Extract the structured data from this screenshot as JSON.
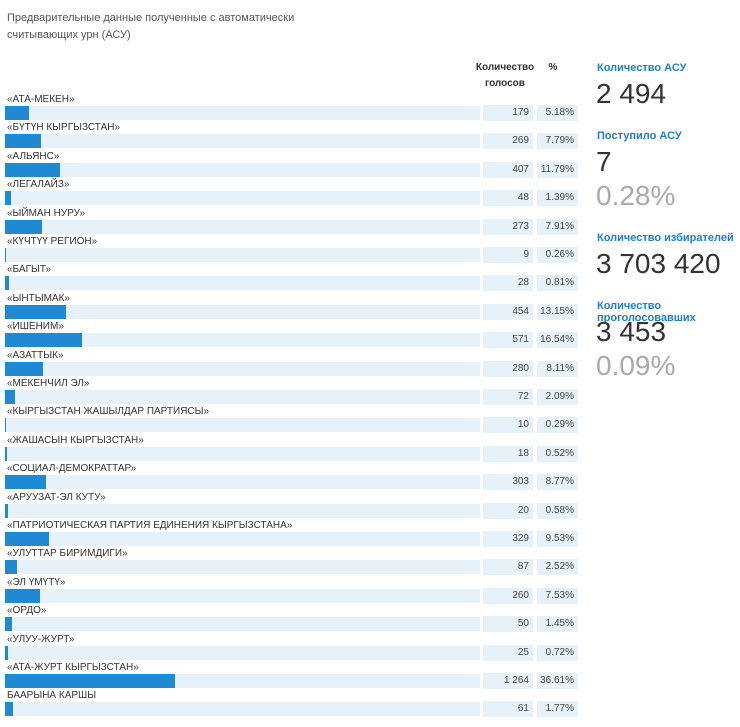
{
  "header": {
    "title_lines": [
      "Предварительные данные полученные с автоматически",
      "считывающих урн (АСУ)"
    ],
    "col_votes_lines": [
      "Количество",
      "голосов"
    ],
    "col_percent": "%"
  },
  "rows": [
    {
      "name": "«АТА-МЕКЕН»",
      "votes": 179,
      "percent": "5.18%"
    },
    {
      "name": "«БҮТҮН КЫРГЫЗСТАН»",
      "votes": 269,
      "percent": "7.79%"
    },
    {
      "name": "«АЛЬЯНС»",
      "votes": 407,
      "percent": "11.79%"
    },
    {
      "name": "«ЛЕГАЛАЙЗ»",
      "votes": 48,
      "percent": "1.39%"
    },
    {
      "name": "«ЫЙМАН НУРУ»",
      "votes": 273,
      "percent": "7.91%"
    },
    {
      "name": "«КҮЧТҮҮ РЕГИОН»",
      "votes": 9,
      "percent": "0.26%"
    },
    {
      "name": "«БАГЫТ»",
      "votes": 28,
      "percent": "0.81%"
    },
    {
      "name": "«ЫНТЫМАК»",
      "votes": 454,
      "percent": "13.15%"
    },
    {
      "name": "«ИШЕНИМ»",
      "votes": 571,
      "percent": "16.54%"
    },
    {
      "name": "«АЗАТТЫК»",
      "votes": 280,
      "percent": "8.11%"
    },
    {
      "name": "«МЕКЕНЧИЛ ЭЛ»",
      "votes": 72,
      "percent": "2.09%"
    },
    {
      "name": "«КЫРГЫЗСТАН ЖАШЫЛДАР ПАРТИЯСЫ»",
      "votes": 10,
      "percent": "0.29%"
    },
    {
      "name": "«ЖАШАСЫН КЫРГЫЗСТАН»",
      "votes": 18,
      "percent": "0.52%"
    },
    {
      "name": "«СОЦИАЛ-ДЕМОКРАТТАР»",
      "votes": 303,
      "percent": "8.77%"
    },
    {
      "name": "«АРУУЗАТ-ЭЛ КУТУ»",
      "votes": 20,
      "percent": "0.58%"
    },
    {
      "name": "«ПАТРИОТИЧЕСКАЯ ПАРТИЯ ЕДИНЕНИЯ КЫРГЫЗСТАНА»",
      "votes": 329,
      "percent": "9.53%"
    },
    {
      "name": "«УЛУТТАР БИРИМДИГИ»",
      "votes": 87,
      "percent": "2.52%"
    },
    {
      "name": "«ЭЛ ҮМҮТҮ»",
      "votes": 260,
      "percent": "7.53%"
    },
    {
      "name": "«ОРДО»",
      "votes": 50,
      "percent": "1.45%"
    },
    {
      "name": "«УЛУУ-ЖУРТ»",
      "votes": 25,
      "percent": "0.72%"
    },
    {
      "name": "«АТА-ЖУРТ КЫРГЫЗСТАН»",
      "votes": {
        "value": 1264,
        "label": "1 264"
      },
      "percent": "36.61%"
    },
    {
      "name": "БААРЫНА КАРШЫ",
      "votes": 61,
      "percent": "1.77%"
    }
  ],
  "stats": [
    {
      "label": "Количество АСУ",
      "values": [
        "2 494"
      ]
    },
    {
      "label": "Поступило АСУ",
      "values": [
        "7",
        "0.28%"
      ]
    },
    {
      "label": "Количество избирателей",
      "values": [
        "3 703 420"
      ]
    },
    {
      "label": "Количество проголосовавших",
      "values": [
        "3 453",
        "0.09%"
      ]
    }
  ]
}
